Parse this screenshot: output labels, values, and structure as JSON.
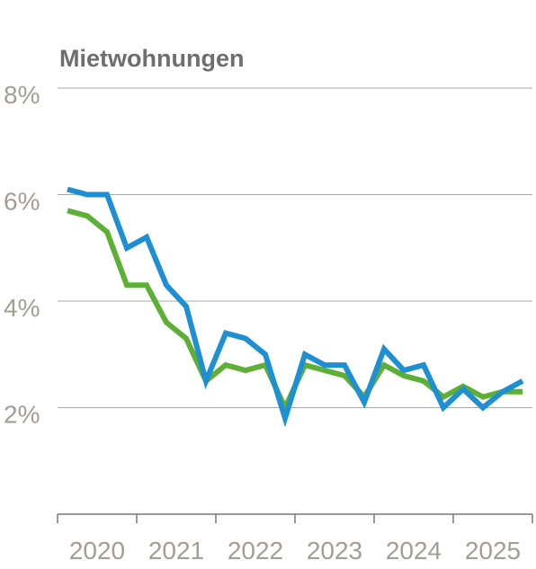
{
  "chart_data": {
    "type": "line",
    "title": "Mietwohnungen",
    "xlabel": "",
    "ylabel": "",
    "y_tick_labels": [
      "2%",
      "4%",
      "6%",
      "8%"
    ],
    "y_ticks": [
      2,
      4,
      6,
      8
    ],
    "ylim": [
      0,
      8
    ],
    "x_tick_labels": [
      "2020",
      "2021",
      "2022",
      "2023",
      "2024",
      "2025"
    ],
    "xlim": [
      2020,
      2026
    ],
    "grid": true,
    "legend": "none",
    "colors": {
      "series_1": "#1e8fd2",
      "series_2": "#5daf35",
      "grid": "#a8a8a8",
      "axis": "#777777",
      "tick_text": "#a49d94",
      "title": "#6e6e6e"
    },
    "series": [
      {
        "x": [
          2020.125,
          2020.375,
          2020.625,
          2020.875,
          2021.125,
          2021.375,
          2021.625,
          2021.875,
          2022.125,
          2022.375,
          2022.625,
          2022.875,
          2023.125,
          2023.375,
          2023.625,
          2023.875,
          2024.125,
          2024.375,
          2024.625,
          2024.875,
          2025.125,
          2025.375,
          2025.625,
          2025.875
        ],
        "values": [
          6.1,
          6.0,
          6.0,
          5.0,
          5.2,
          4.3,
          3.9,
          2.5,
          3.4,
          3.3,
          3.0,
          1.8,
          3.0,
          2.8,
          2.8,
          2.1,
          3.1,
          2.7,
          2.8,
          2.0,
          2.35,
          2.0,
          2.3,
          2.5
        ]
      },
      {
        "x": [
          2020.125,
          2020.375,
          2020.625,
          2020.875,
          2021.125,
          2021.375,
          2021.625,
          2021.875,
          2022.125,
          2022.375,
          2022.625,
          2022.875,
          2023.125,
          2023.375,
          2023.625,
          2023.875,
          2024.125,
          2024.375,
          2024.625,
          2024.875,
          2025.125,
          2025.375,
          2025.625,
          2025.875
        ],
        "values": [
          5.7,
          5.6,
          5.3,
          4.3,
          4.3,
          3.6,
          3.3,
          2.5,
          2.8,
          2.7,
          2.8,
          2.0,
          2.8,
          2.7,
          2.6,
          2.2,
          2.8,
          2.6,
          2.5,
          2.2,
          2.4,
          2.2,
          2.3,
          2.3
        ]
      }
    ]
  }
}
